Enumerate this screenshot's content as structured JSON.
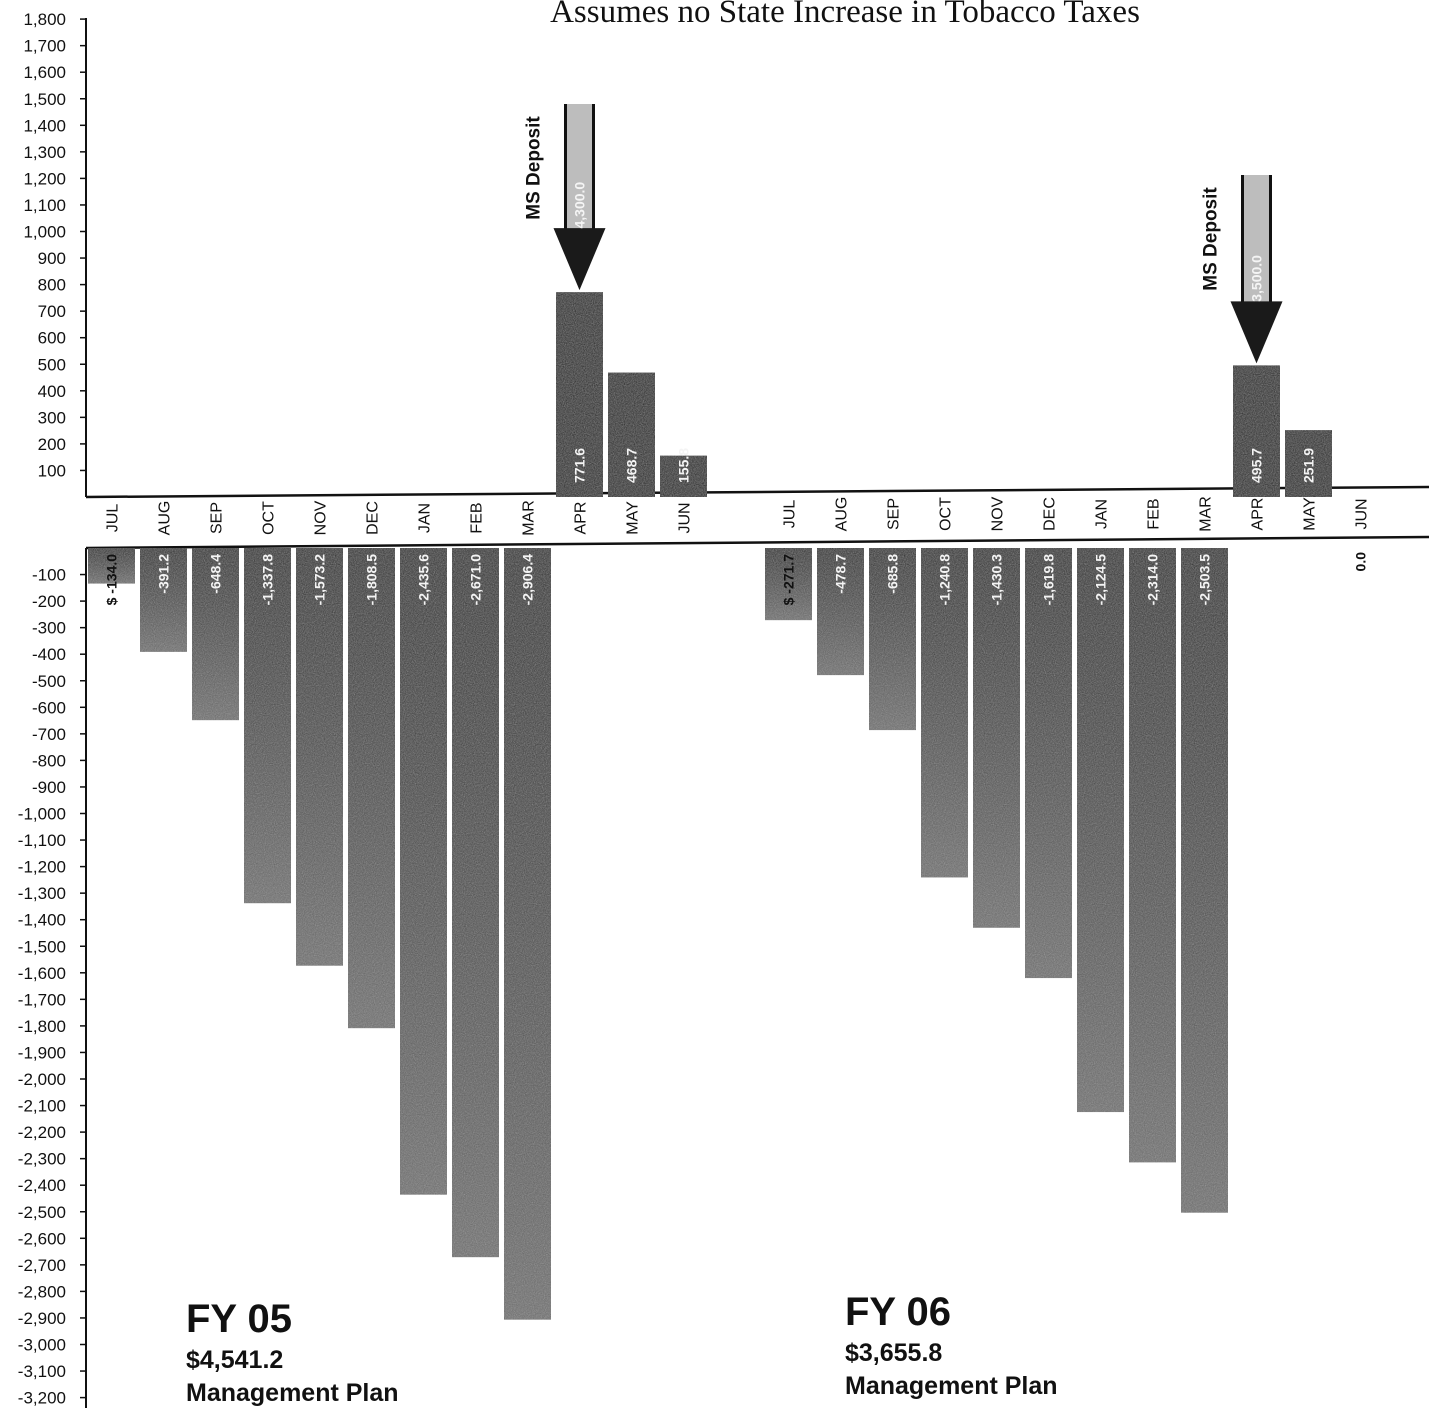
{
  "chart_data": {
    "type": "bar",
    "title": "Assumes no State Increase in Tobacco Taxes",
    "xlabel": "",
    "ylabel": "",
    "ylim": [
      -3200,
      1800
    ],
    "y_ticks": [
      "1,800",
      "1,700",
      "1,600",
      "1,500",
      "1,400",
      "1,300",
      "1,200",
      "1,100",
      "1,000",
      "900",
      "800",
      "700",
      "600",
      "500",
      "400",
      "300",
      "200",
      "100",
      "-100",
      "-200",
      "-300",
      "-400",
      "-500",
      "-600",
      "-700",
      "-800",
      "-900",
      "-1,000",
      "-1,100",
      "-1,200",
      "-1,300",
      "-1,400",
      "-1,500",
      "-1,600",
      "-1,700",
      "-1,800",
      "-1,900",
      "-2,000",
      "-2,100",
      "-2,200",
      "-2,300",
      "-2,400",
      "-2,500",
      "-2,600",
      "-2,700",
      "-2,800",
      "-2,900",
      "-3,000",
      "-3,100",
      "-3,200"
    ],
    "grid": false,
    "panels": [
      {
        "name": "FY 05",
        "amount": "$4,541.2",
        "plan": "Management Plan",
        "categories": [
          "JUL",
          "AUG",
          "SEP",
          "OCT",
          "NOV",
          "DEC",
          "JAN",
          "FEB",
          "MAR",
          "APR",
          "MAY",
          "JUN"
        ],
        "values": [
          -134.0,
          -391.2,
          -648.4,
          -1337.8,
          -1573.2,
          -1808.5,
          -2435.6,
          -2671.0,
          -2906.4,
          771.6,
          468.7,
          155.8
        ],
        "labels": [
          "$ -134.0",
          "-391.2",
          "-648.4",
          "-1,337.8",
          "-1,573.2",
          "-1,808.5",
          "-2,435.6",
          "-2,671.0",
          "-2,906.4",
          "771.6",
          "468.7",
          "155.8"
        ],
        "deposit": {
          "label": "MS Deposit",
          "amount": "4,300.0",
          "month": "APR"
        }
      },
      {
        "name": "FY 06",
        "amount": "$3,655.8",
        "plan": "Management Plan",
        "categories": [
          "JUL",
          "AUG",
          "SEP",
          "OCT",
          "NOV",
          "DEC",
          "JAN",
          "FEB",
          "MAR",
          "APR",
          "MAY",
          "JUN"
        ],
        "values": [
          -271.7,
          -478.7,
          -685.8,
          -1240.8,
          -1430.3,
          -1619.8,
          -2124.5,
          -2314.0,
          -2503.5,
          495.7,
          251.9,
          0.0
        ],
        "labels": [
          "$ -271.7",
          "-478.7",
          "-685.8",
          "-1,240.8",
          "-1,430.3",
          "-1,619.8",
          "-2,124.5",
          "-2,314.0",
          "-2,503.5",
          "495.7",
          "251.9",
          "0.0"
        ],
        "deposit": {
          "label": "MS Deposit",
          "amount": "3,500.0",
          "month": "APR"
        }
      }
    ]
  },
  "colors": {
    "bar_dark": "#1c1c1c",
    "bar_neg_top": "#262626",
    "bar_neg_bottom": "#6e6e6e",
    "axis": "#111111"
  }
}
